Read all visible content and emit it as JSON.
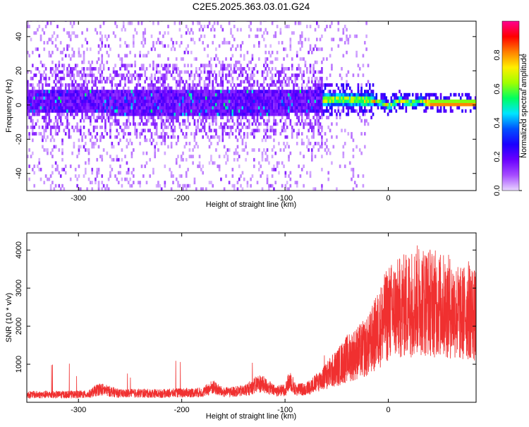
{
  "title": "C2E5.2025.363.03.01.G24",
  "chart_data": [
    {
      "type": "heatmap",
      "xlabel": "Height of straight line (km)",
      "ylabel": "Frequency (Hz)",
      "xlim": [
        -350,
        85
      ],
      "ylim": [
        -50,
        49
      ],
      "xticks": [
        -300,
        -200,
        -100,
        0
      ],
      "yticks": [
        -40,
        -20,
        0,
        20,
        40
      ],
      "xtick_labels": [
        "-300",
        "-200",
        "-100",
        "0"
      ],
      "ytick_labels": [
        "-40",
        "-20",
        "0",
        "20",
        "40"
      ],
      "colorbar": {
        "label": "Normalized spectral amplitude",
        "range": [
          0,
          1
        ],
        "ticks": [
          0.0,
          0.2,
          0.4,
          0.6,
          0.8
        ],
        "tick_labels": [
          "0.0",
          "0.2",
          "0.4",
          "0.6",
          "0.8"
        ],
        "colormap": [
          "#e9d7ff",
          "#a64cff",
          "#6a00ff",
          "#1a00ff",
          "#0050ff",
          "#00e5ff",
          "#00ff60",
          "#a0ff00",
          "#ffee00",
          "#ff8000",
          "#ff0000",
          "#ff0090"
        ]
      },
      "center_track": [
        {
          "x": -350,
          "f": 1.5
        },
        {
          "x": -300,
          "f": 1.0
        },
        {
          "x": -250,
          "f": 0.5
        },
        {
          "x": -200,
          "f": 0.5
        },
        {
          "x": -150,
          "f": 0.5
        },
        {
          "x": -100,
          "f": 0.5
        },
        {
          "x": -70,
          "f": 2.0
        },
        {
          "x": -50,
          "f": 2.5
        },
        {
          "x": -30,
          "f": 2.0
        },
        {
          "x": -15,
          "f": 1.5
        },
        {
          "x": -5,
          "f": 0.0
        },
        {
          "x": 0,
          "f": -1.5
        },
        {
          "x": 10,
          "f": 2.0
        },
        {
          "x": 20,
          "f": 0.0
        },
        {
          "x": 30,
          "f": 1.5
        },
        {
          "x": 40,
          "f": 0.0
        },
        {
          "x": 50,
          "f": 0.0
        },
        {
          "x": 85,
          "f": 0.0
        }
      ]
    },
    {
      "type": "line",
      "xlabel": "Height of straight line (km)",
      "ylabel": "SNR (10 * v/v)",
      "xlim": [
        -350,
        85
      ],
      "ylim": [
        0,
        4450
      ],
      "xticks": [
        -300,
        -200,
        -100,
        0
      ],
      "yticks": [
        1000,
        2000,
        3000,
        4000
      ],
      "xtick_labels": [
        "-300",
        "-200",
        "-100",
        "0"
      ],
      "ytick_labels": [
        "1000",
        "2000",
        "3000",
        "4000"
      ],
      "color": "#f03030",
      "series": [
        {
          "x": [
            -350,
            -320,
            -290,
            -280,
            -260,
            -240,
            -220,
            -200,
            -180,
            -170,
            -160,
            -140,
            -125,
            -120,
            -110,
            -100,
            -95,
            -90,
            -80,
            -70,
            -60,
            -50,
            -40,
            -30,
            -20,
            -10,
            0,
            10,
            20,
            30,
            40,
            50,
            60,
            70,
            80,
            85
          ],
          "y": [
            200,
            200,
            210,
            350,
            230,
            240,
            230,
            250,
            260,
            400,
            260,
            300,
            500,
            450,
            300,
            320,
            600,
            330,
            350,
            500,
            700,
            900,
            1150,
            1300,
            1450,
            1900,
            2350,
            2450,
            2600,
            2700,
            2650,
            2550,
            2500,
            2300,
            2450,
            2200
          ]
        }
      ]
    }
  ]
}
